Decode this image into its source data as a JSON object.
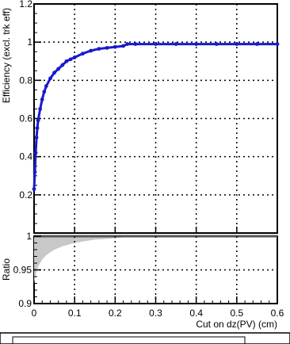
{
  "chart_data": [
    {
      "type": "line",
      "title": "",
      "xlabel": "",
      "ylabel": "Efficiency (excl. trk eff)",
      "xlim": [
        0,
        0.6
      ],
      "ylim": [
        0,
        1.2
      ],
      "grid": true,
      "x_ticks": [
        0,
        0.1,
        0.2,
        0.3,
        0.4,
        0.5,
        0.6
      ],
      "y_ticks": [
        {
          "value": 0.2,
          "label": "0.2"
        },
        {
          "value": 0.4,
          "label": "0.4"
        },
        {
          "value": 0.6,
          "label": "0.6"
        },
        {
          "value": 0.8,
          "label": "0.8"
        },
        {
          "value": 1.0,
          "label": "1"
        },
        {
          "value": 1.2,
          "label": "1.2"
        }
      ],
      "series": [
        {
          "color": "#1a1acc",
          "marker": "point",
          "x": [
            0.0,
            0.002,
            0.004,
            0.006,
            0.008,
            0.01,
            0.015,
            0.02,
            0.025,
            0.03,
            0.04,
            0.05,
            0.06,
            0.07,
            0.08,
            0.09,
            0.1,
            0.12,
            0.14,
            0.16,
            0.18,
            0.2,
            0.22,
            0.23,
            0.25,
            0.3,
            0.35,
            0.4,
            0.45,
            0.5,
            0.55,
            0.6
          ],
          "y": [
            0.23,
            0.32,
            0.42,
            0.5,
            0.55,
            0.59,
            0.65,
            0.7,
            0.74,
            0.77,
            0.81,
            0.84,
            0.86,
            0.88,
            0.9,
            0.91,
            0.92,
            0.94,
            0.955,
            0.965,
            0.97,
            0.975,
            0.98,
            0.99,
            0.99,
            0.99,
            0.99,
            0.99,
            0.99,
            0.99,
            0.99,
            0.99
          ]
        }
      ]
    },
    {
      "type": "area",
      "title": "",
      "xlabel": "Cut on dz(PV) (cm)",
      "ylabel": "Ratio",
      "xlim": [
        0,
        0.6
      ],
      "ylim": [
        0.9,
        1.0
      ],
      "grid": true,
      "x_ticks": [
        {
          "value": 0,
          "label": "0"
        },
        {
          "value": 0.1,
          "label": "0.1"
        },
        {
          "value": 0.2,
          "label": "0.2"
        },
        {
          "value": 0.3,
          "label": "0.3"
        },
        {
          "value": 0.4,
          "label": "0.4"
        },
        {
          "value": 0.5,
          "label": "0.5"
        },
        {
          "value": 0.6,
          "label": "0.6"
        }
      ],
      "y_ticks": [
        {
          "value": 0.9,
          "label": "0.9"
        },
        {
          "value": 0.95,
          "label": "0.95"
        },
        {
          "value": 1.0,
          "label": "1"
        }
      ],
      "series": [
        {
          "color": "#c8c8c8",
          "x": [
            0.0,
            0.005,
            0.01,
            0.02,
            0.03,
            0.05,
            0.07,
            0.1,
            0.12,
            0.15,
            0.2,
            0.23,
            0.3,
            0.4,
            0.5,
            0.6
          ],
          "lower": [
            0.93,
            0.945,
            0.955,
            0.965,
            0.972,
            0.98,
            0.985,
            0.99,
            0.992,
            0.995,
            0.997,
            0.999,
            0.999,
            0.999,
            0.999,
            0.999
          ],
          "upper": [
            1.0,
            1.0,
            1.0,
            1.0,
            1.0,
            1.0,
            1.0,
            1.0,
            1.0,
            1.0,
            1.0,
            1.0,
            1.0,
            1.0,
            1.0,
            1.0
          ]
        }
      ],
      "ratio_line": 1.0
    }
  ]
}
